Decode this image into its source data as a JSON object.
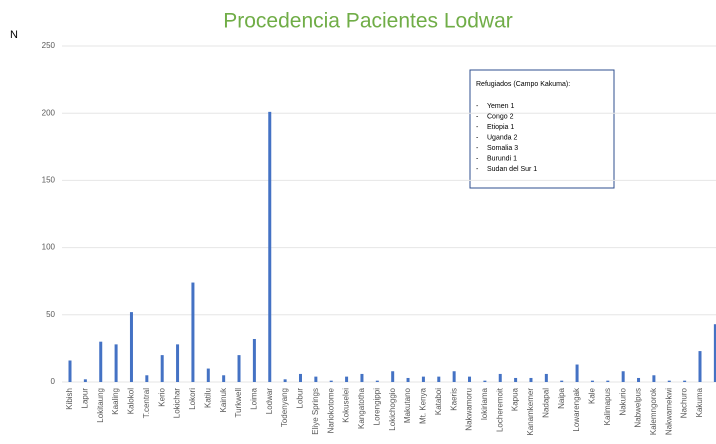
{
  "chart_data": {
    "type": "bar",
    "title": "Procedencia Pacientes Lodwar",
    "y_label": "N",
    "categories": [
      "Kibish",
      "Lapur",
      "Lokitaung",
      "Kaaling",
      "Kalokol",
      "T.central",
      "Kerio",
      "Lokichar",
      "Lokori",
      "Katilu",
      "Kainuk",
      "Turkwell",
      "Loima",
      "Lodwar",
      "Todenyang",
      "Lobur",
      "Eliye Springs",
      "Nariokotome",
      "Kokuselei",
      "Kangatotha",
      "Lorengippi",
      "Lokichoggio",
      "Makutano",
      "Mt. Kenya",
      "Kataboi",
      "Kaeris",
      "Nakwamoru",
      "lokiriama",
      "Locheremoit",
      "Kapua",
      "Kanamkemer",
      "Nadapal",
      "Naipa",
      "Lowarengak",
      "Kale",
      "Kalimapus",
      "Nakurio",
      "Nabwelpus",
      "Kalemngorok",
      "Nakwamekwi",
      "Nachuro",
      "Kakuma",
      null
    ],
    "values": [
      16,
      2,
      30,
      28,
      52,
      5,
      20,
      28,
      74,
      10,
      5,
      20,
      32,
      201,
      2,
      6,
      4,
      1,
      4,
      6,
      1,
      8,
      3,
      4,
      4,
      8,
      4,
      1,
      6,
      3,
      3,
      6,
      1,
      13,
      1,
      1,
      8,
      3,
      5,
      1,
      1,
      23,
      43
    ],
    "color": "#4472c4",
    "ylim": [
      0,
      250
    ],
    "yticks": [
      0,
      50,
      100,
      150,
      200,
      250
    ],
    "grid": true,
    "annotation": {
      "title": "Refugiados (Campo Kakuma):",
      "bullet": "-",
      "items": [
        "Yemen 1",
        "Congo 2",
        "Etiopia 1",
        "Uganda  2",
        "Somalia  3",
        "Burundi  1",
        "Sudan del Sur  1"
      ]
    }
  }
}
